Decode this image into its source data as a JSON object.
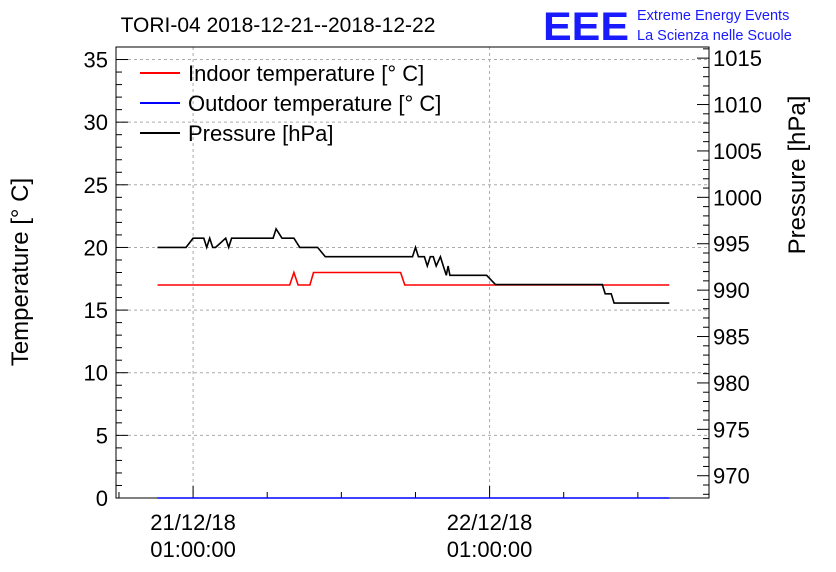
{
  "chart_data": {
    "type": "line",
    "title": "TORI-04 2018-12-21--2018-12-22",
    "ylabel": "Temperature [° C]",
    "y2label": "Pressure [hPa]",
    "xlabel": "",
    "ylim": [
      0,
      36
    ],
    "y2lim": [
      967.6,
      1016.2
    ],
    "xlim": [
      0,
      1
    ],
    "yticks": [
      "0",
      "5",
      "10",
      "15",
      "20",
      "25",
      "30",
      "35"
    ],
    "y2ticks": [
      "970",
      "975",
      "980",
      "985",
      "990",
      "995",
      "1000",
      "1005",
      "1010",
      "1015"
    ],
    "xticks": [
      {
        "x": 0.13,
        "line1": "21/12/18",
        "line2": "01:00:00"
      },
      {
        "x": 0.63,
        "line1": "22/12/18",
        "line2": "01:00:00"
      }
    ],
    "grid": true,
    "legend_position": "top-left",
    "series": [
      {
        "name": "Indoor temperature [° C]",
        "color": "#ff0000",
        "axis": "left",
        "x": [
          0.07,
          0.293,
          0.3,
          0.307,
          0.327,
          0.333,
          0.48,
          0.487,
          0.933
        ],
        "y": [
          17,
          17,
          18,
          17,
          17,
          18,
          18,
          17,
          17
        ]
      },
      {
        "name": "Outdoor temperature [° C]",
        "color": "#0000ff",
        "axis": "left",
        "x": [
          0.07,
          0.933
        ],
        "y": [
          0,
          0
        ]
      },
      {
        "name": "Pressure [hPa]",
        "color": "#000000",
        "axis": "right",
        "x": [
          0.07,
          0.118,
          0.13,
          0.148,
          0.153,
          0.158,
          0.163,
          0.168,
          0.185,
          0.19,
          0.195,
          0.2,
          0.205,
          0.265,
          0.27,
          0.28,
          0.285,
          0.3,
          0.31,
          0.34,
          0.353,
          0.37,
          0.415,
          0.437,
          0.465,
          0.48,
          0.5,
          0.505,
          0.51,
          0.52,
          0.525,
          0.53,
          0.535,
          0.54,
          0.547,
          0.552,
          0.557,
          0.56,
          0.563,
          0.568,
          0.625,
          0.64,
          0.67,
          0.82,
          0.825,
          0.835,
          0.84,
          0.85,
          0.86,
          0.933
        ],
        "y": [
          994.6,
          994.6,
          995.6,
          995.6,
          994.6,
          995.6,
          994.6,
          994.6,
          995.6,
          994.6,
          995.6,
          995.6,
          995.6,
          995.6,
          996.6,
          995.6,
          995.6,
          995.6,
          994.6,
          994.6,
          993.6,
          993.6,
          993.6,
          993.6,
          993.6,
          993.6,
          993.6,
          994.6,
          993.6,
          993.6,
          992.6,
          993.6,
          993.6,
          992.6,
          993.6,
          992.6,
          991.6,
          992.6,
          991.6,
          991.6,
          991.6,
          990.6,
          990.6,
          990.6,
          989.6,
          989.6,
          988.6,
          988.6,
          988.6,
          988.6
        ]
      }
    ]
  },
  "logo": {
    "letters": "EEE",
    "line1": "Extreme Energy Events",
    "line2": "La Scienza nelle Scuole"
  }
}
